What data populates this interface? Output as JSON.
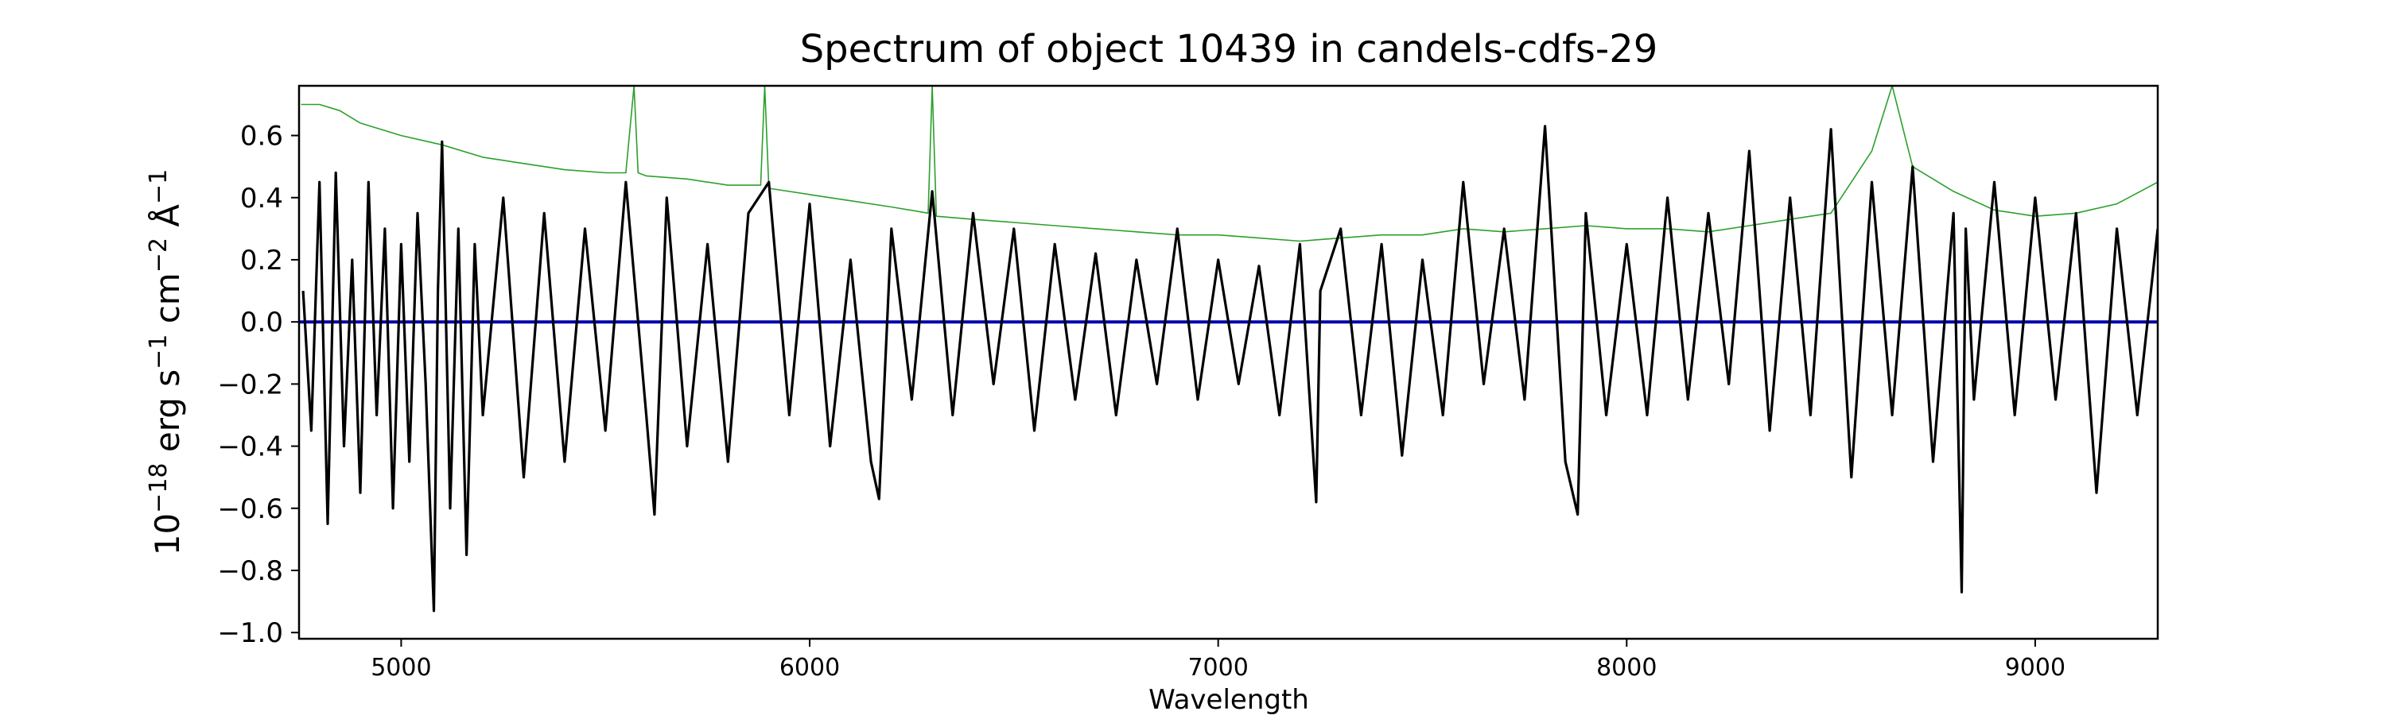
{
  "chart_data": {
    "type": "line",
    "title": "Spectrum of object 10439 in candels-cdfs-29",
    "xlabel": "Wavelength",
    "ylabel_parts": {
      "base": "10",
      "exp1": "−18",
      "erg": " erg s",
      "exp2": "−1",
      "cm": " cm",
      "exp3": "−2",
      "ang": " Å",
      "exp4": "−1"
    },
    "xlim": [
      4750,
      9300
    ],
    "ylim": [
      -1.02,
      0.76
    ],
    "xticks": [
      5000,
      6000,
      7000,
      8000,
      9000
    ],
    "xtick_labels": [
      "5000",
      "6000",
      "7000",
      "8000",
      "9000"
    ],
    "yticks": [
      0.6,
      0.4,
      0.2,
      0.0,
      -0.2,
      -0.4,
      -0.6,
      -0.8,
      -1.0
    ],
    "ytick_labels": [
      "0.6",
      "0.4",
      "0.2",
      "0.0",
      "−0.2",
      "−0.4",
      "−0.6",
      "−0.8",
      "−1.0"
    ],
    "grid": false,
    "series": [
      {
        "role": "error",
        "color": "#2ca02c",
        "x": [
          4755,
          4800,
          4850,
          4900,
          5000,
          5100,
          5200,
          5300,
          5400,
          5500,
          5550,
          5570,
          5580,
          5600,
          5700,
          5800,
          5880,
          5890,
          5900,
          6000,
          6100,
          6200,
          6290,
          6300,
          6310,
          6400,
          6500,
          6600,
          6700,
          6800,
          6900,
          7000,
          7100,
          7200,
          7300,
          7400,
          7500,
          7600,
          7700,
          7800,
          7900,
          8000,
          8100,
          8200,
          8300,
          8400,
          8500,
          8600,
          8650,
          8700,
          8800,
          8900,
          9000,
          9100,
          9200,
          9300
        ],
        "values": [
          0.7,
          0.7,
          0.68,
          0.64,
          0.6,
          0.57,
          0.53,
          0.51,
          0.49,
          0.48,
          0.48,
          0.76,
          0.48,
          0.47,
          0.46,
          0.44,
          0.44,
          0.76,
          0.43,
          0.41,
          0.39,
          0.37,
          0.35,
          0.76,
          0.34,
          0.33,
          0.32,
          0.31,
          0.3,
          0.29,
          0.28,
          0.28,
          0.27,
          0.26,
          0.27,
          0.28,
          0.28,
          0.3,
          0.29,
          0.3,
          0.31,
          0.3,
          0.3,
          0.29,
          0.31,
          0.33,
          0.35,
          0.55,
          0.76,
          0.5,
          0.42,
          0.36,
          0.34,
          0.35,
          0.38,
          0.45
        ]
      },
      {
        "role": "zero",
        "color": "#0000aa",
        "x": [
          4750,
          9300
        ],
        "values": [
          0.0,
          0.0
        ]
      },
      {
        "role": "flux",
        "color": "#000000",
        "x": [
          4760,
          4780,
          4800,
          4820,
          4840,
          4860,
          4880,
          4900,
          4920,
          4940,
          4960,
          4980,
          5000,
          5020,
          5040,
          5060,
          5080,
          5090,
          5100,
          5120,
          5140,
          5160,
          5180,
          5200,
          5250,
          5300,
          5350,
          5400,
          5450,
          5500,
          5550,
          5600,
          5620,
          5650,
          5700,
          5750,
          5800,
          5850,
          5900,
          5950,
          6000,
          6050,
          6100,
          6150,
          6170,
          6200,
          6250,
          6300,
          6350,
          6400,
          6450,
          6500,
          6550,
          6600,
          6650,
          6700,
          6750,
          6800,
          6850,
          6900,
          6950,
          7000,
          7050,
          7100,
          7150,
          7200,
          7240,
          7250,
          7300,
          7350,
          7400,
          7450,
          7500,
          7550,
          7600,
          7650,
          7700,
          7750,
          7800,
          7850,
          7880,
          7900,
          7950,
          8000,
          8050,
          8100,
          8150,
          8200,
          8250,
          8300,
          8350,
          8400,
          8450,
          8500,
          8550,
          8600,
          8650,
          8700,
          8750,
          8800,
          8820,
          8830,
          8850,
          8900,
          8950,
          9000,
          9050,
          9100,
          9150,
          9200,
          9250,
          9300
        ],
        "values": [
          0.1,
          -0.35,
          0.45,
          -0.65,
          0.48,
          -0.4,
          0.2,
          -0.55,
          0.45,
          -0.3,
          0.3,
          -0.6,
          0.25,
          -0.45,
          0.35,
          -0.2,
          -0.93,
          0.1,
          0.58,
          -0.6,
          0.3,
          -0.75,
          0.25,
          -0.3,
          0.4,
          -0.5,
          0.35,
          -0.45,
          0.3,
          -0.35,
          0.45,
          -0.3,
          -0.62,
          0.4,
          -0.4,
          0.25,
          -0.45,
          0.35,
          0.45,
          -0.3,
          0.38,
          -0.4,
          0.2,
          -0.45,
          -0.57,
          0.3,
          -0.25,
          0.42,
          -0.3,
          0.35,
          -0.2,
          0.3,
          -0.35,
          0.25,
          -0.25,
          0.22,
          -0.3,
          0.2,
          -0.2,
          0.3,
          -0.25,
          0.2,
          -0.2,
          0.18,
          -0.3,
          0.25,
          -0.58,
          0.1,
          0.3,
          -0.3,
          0.25,
          -0.43,
          0.2,
          -0.3,
          0.45,
          -0.2,
          0.3,
          -0.25,
          0.63,
          -0.45,
          -0.62,
          0.35,
          -0.3,
          0.25,
          -0.3,
          0.4,
          -0.25,
          0.35,
          -0.2,
          0.55,
          -0.35,
          0.4,
          -0.3,
          0.62,
          -0.5,
          0.45,
          -0.3,
          0.5,
          -0.45,
          0.35,
          -0.87,
          0.3,
          -0.25,
          0.45,
          -0.3,
          0.4,
          -0.25,
          0.35,
          -0.55,
          0.3,
          -0.3,
          0.3
        ]
      }
    ]
  }
}
